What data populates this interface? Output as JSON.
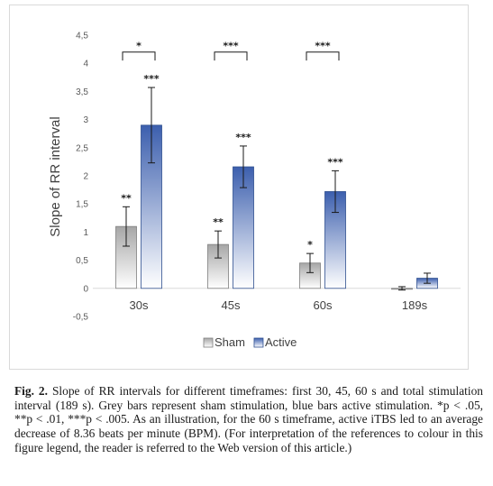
{
  "chart_data": {
    "type": "bar",
    "ylabel": "Slope of RR interval",
    "ylim": [
      -0.5,
      4.5
    ],
    "yticks": [
      "4,5",
      "4",
      "3,5",
      "3",
      "2,5",
      "2",
      "1,5",
      "1",
      "0,5",
      "0",
      "-0,5"
    ],
    "ytick_values": [
      4.5,
      4,
      3.5,
      3,
      2.5,
      2,
      1.5,
      1,
      0.5,
      0,
      -0.5
    ],
    "categories": [
      "30s",
      "45s",
      "60s",
      "189s"
    ],
    "series": [
      {
        "name": "Sham",
        "color": "#a6a6a6",
        "values": [
          1.1,
          0.78,
          0.45,
          0.0
        ],
        "errors": [
          0.35,
          0.24,
          0.17,
          0.03
        ],
        "sig": [
          "**",
          "**",
          "*",
          ""
        ]
      },
      {
        "name": "Active",
        "color": "#4a6cb8",
        "values": [
          2.9,
          2.16,
          1.72,
          0.18
        ],
        "errors": [
          0.67,
          0.37,
          0.37,
          0.09
        ],
        "sig": [
          "***",
          "***",
          "***",
          ""
        ]
      }
    ],
    "comparisons": [
      "*",
      "***",
      "***",
      ""
    ],
    "legend": {
      "items": [
        "Sham",
        "Active"
      ],
      "position": "bottom"
    },
    "grid": false
  },
  "caption": {
    "label": "Fig. 2.",
    "text": " Slope of RR intervals for different timeframes: first 30, 45, 60 s and total stimulation interval (189 s). Grey bars represent sham stimulation, blue bars active stimulation. *p < .05, **p < .01, ***p < .005. As an illustration, for the 60 s timeframe, active iTBS led to an average decrease of 8.36 beats per minute (BPM). (For interpretation of the references to colour in this figure legend, the reader is referred to the Web version of this article.)"
  }
}
